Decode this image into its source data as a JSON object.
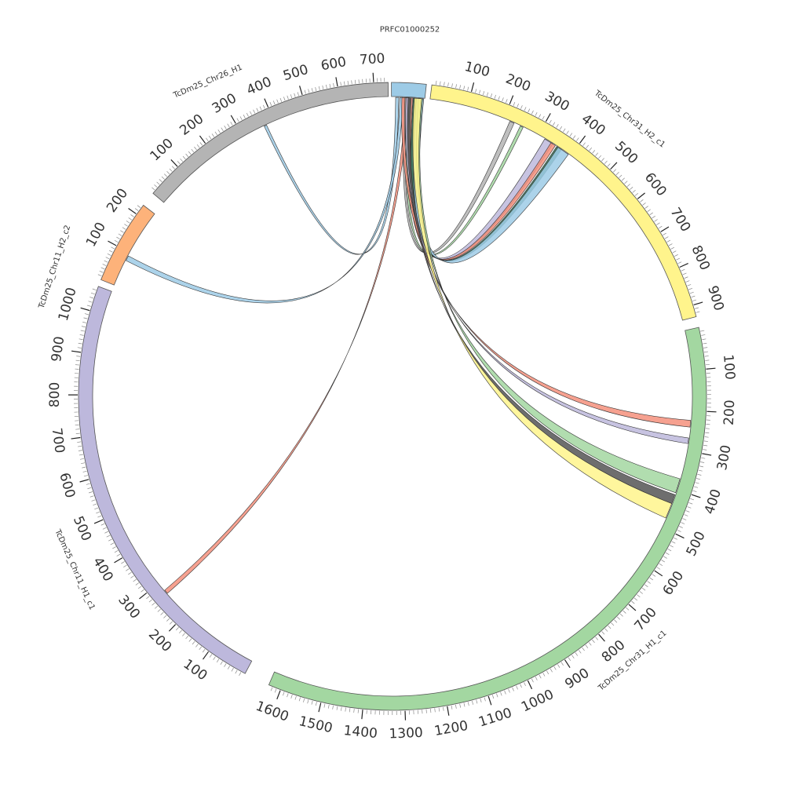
{
  "segments": [
    {
      "id": "prfc",
      "name": "PRFC01000252",
      "color": "#9dcbe6",
      "ticks": []
    },
    {
      "id": "chr31h2",
      "name": "TcDm25_Chr31_H2_c1",
      "color": "#fff48c",
      "ticks": [
        "100",
        "200",
        "300",
        "400",
        "500",
        "600",
        "700",
        "800",
        "900"
      ]
    },
    {
      "id": "chr31h1",
      "name": "TcDm25_Chr31_H1_c1",
      "color": "#a3d7a1",
      "ticks": [
        "100",
        "200",
        "300",
        "400",
        "500",
        "600",
        "700",
        "800",
        "900",
        "1000",
        "1100",
        "1200",
        "1300",
        "1400",
        "1500",
        "1600"
      ]
    },
    {
      "id": "chr11h1",
      "name": "TcDm25_Chr11_H1_c1",
      "color": "#bdb8dc",
      "ticks": [
        "100",
        "200",
        "300",
        "400",
        "500",
        "600",
        "700",
        "800",
        "900",
        "1000"
      ]
    },
    {
      "id": "chr11h2",
      "name": "TcDm25_Chr11_H2_c2",
      "color": "#fdb27a",
      "ticks": [
        "100",
        "200"
      ]
    },
    {
      "id": "chr26h1",
      "name": "TcDm25_Chr26_H1",
      "color": "#b4b4b4",
      "ticks": [
        "100",
        "200",
        "300",
        "400",
        "500",
        "600",
        "700"
      ]
    }
  ],
  "links": [
    {
      "from": "prfc",
      "to": "chr26h1",
      "color": "#9dcbe6"
    },
    {
      "from": "prfc",
      "to": "chr11h2",
      "color": "#9dcbe6"
    },
    {
      "from": "prfc",
      "to": "chr11h1",
      "color": "#f4907c"
    },
    {
      "from": "prfc",
      "to": "chr31h2",
      "color": "#b4b4b4"
    },
    {
      "from": "prfc",
      "to": "chr31h2",
      "color": "#a3d7a1"
    },
    {
      "from": "prfc",
      "to": "chr31h2",
      "color": "#bdb8dc"
    },
    {
      "from": "prfc",
      "to": "chr31h2",
      "color": "#f4907c"
    },
    {
      "from": "prfc",
      "to": "chr31h2",
      "color": "#2f6f4f"
    },
    {
      "from": "prfc",
      "to": "chr31h2",
      "color": "#9dcbe6"
    },
    {
      "from": "prfc",
      "to": "chr31h1",
      "color": "#f4907c"
    },
    {
      "from": "prfc",
      "to": "chr31h1",
      "color": "#bdb8dc"
    },
    {
      "from": "prfc",
      "to": "chr31h1",
      "color": "#a3d7a1"
    },
    {
      "from": "prfc",
      "to": "chr31h1",
      "color": "#555555"
    },
    {
      "from": "prfc",
      "to": "chr31h1",
      "color": "#fff48c"
    }
  ]
}
